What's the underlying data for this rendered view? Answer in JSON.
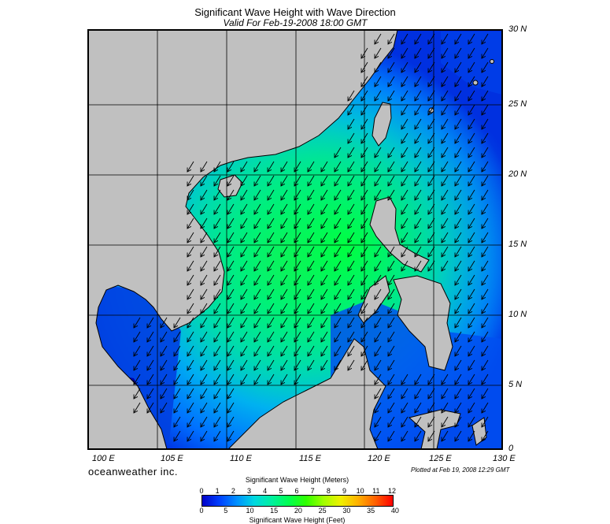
{
  "title": "Significant Wave Height with Wave Direction",
  "subtitle": "Valid For Feb-19-2008 18:00 GMT",
  "lat_labels": [
    "30 N",
    "25 N",
    "20 N",
    "15 N",
    "10 N",
    "5 N",
    "0"
  ],
  "lon_labels": [
    "100 E",
    "105 E",
    "110 E",
    "115 E",
    "120 E",
    "125 E",
    "130 E"
  ],
  "brand": "oceanweather inc.",
  "plotted_note": "Plotted at Feb 19, 2008 12:29 GMT",
  "colorbar": {
    "title_meters": "Significant Wave Height (Meters)",
    "title_feet": "Significant Wave Height (Feet)",
    "meter_ticks": [
      "0",
      "1",
      "2",
      "3",
      "4",
      "5",
      "6",
      "7",
      "8",
      "9",
      "10",
      "11",
      "12"
    ],
    "feet_ticks": [
      "0",
      "5",
      "10",
      "15",
      "20",
      "25",
      "30",
      "35",
      "40"
    ],
    "colors": [
      "#0000c8",
      "#0040ff",
      "#0090ff",
      "#00d8e0",
      "#00f0a0",
      "#00ff50",
      "#30ff00",
      "#a0ff00",
      "#f0f000",
      "#ffb000",
      "#ff6000",
      "#ff0000"
    ]
  },
  "map": {
    "lon_range": [
      100,
      130
    ],
    "lat_range": [
      0,
      30
    ],
    "grid": true,
    "land_color": "#c0c0c0",
    "wave_direction": "north-east"
  }
}
